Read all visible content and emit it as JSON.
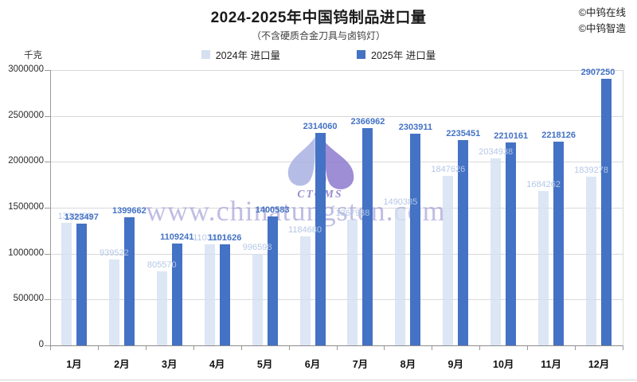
{
  "title": "2024-2025年中国钨制品进口量",
  "subtitle": "（不含硬质合金刀具与卤钨灯）",
  "copyright": {
    "line1": "©中钨在线",
    "line2": "©中钨智造"
  },
  "unit_label": "千克",
  "watermark": {
    "text": "www.chinatungsten.com",
    "logo_text": "CTOMS"
  },
  "colors": {
    "bar_2024": "#D5E0F1",
    "bar_2025": "#4472C4",
    "label_2024": "#B4C7E7",
    "label_2025": "#4472C4",
    "gridline": "#D9D9D9",
    "axis": "#9A9A9A",
    "watermark": "#8D86CC"
  },
  "chart_data": {
    "type": "bar",
    "title": "2024-2025年中国钨制品进口量",
    "subtitle": "（不含硬质合金刀具与卤钨灯）",
    "ylabel": "千克",
    "xlabel": "",
    "grid": true,
    "legend_position": "top",
    "ylim": [
      0,
      3000000
    ],
    "ytick_step": 500000,
    "yticks": [
      0,
      500000,
      1000000,
      1500000,
      2000000,
      2500000,
      3000000
    ],
    "categories": [
      "1月",
      "2月",
      "3月",
      "4月",
      "5月",
      "6月",
      "7月",
      "8月",
      "9月",
      "10月",
      "11月",
      "12月"
    ],
    "series": [
      {
        "name": "2024年 进口量",
        "color": "#D5E0F1",
        "label_color": "#B4C7E7",
        "values": [
          1339450,
          939522,
          805570,
          1103451,
          996598,
          1184680,
          1367938,
          1490385,
          1847626,
          2034938,
          1684262,
          1839278
        ]
      },
      {
        "name": "2025年 进口量",
        "color": "#4472C4",
        "label_color": "#4472C4",
        "values": [
          1323497,
          1399662,
          1109241,
          1101626,
          1400583,
          2314060,
          2366962,
          2303911,
          2235451,
          2210161,
          2218126,
          2907250
        ]
      }
    ]
  }
}
